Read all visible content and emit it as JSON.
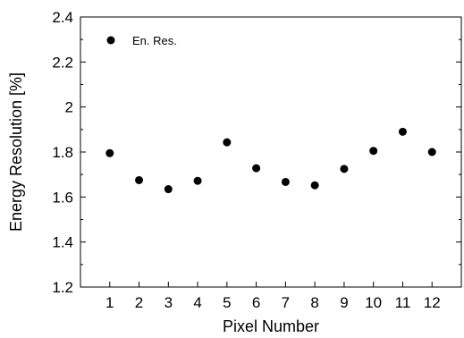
{
  "chart_data": {
    "type": "scatter",
    "x": [
      1,
      2,
      3,
      4,
      5,
      6,
      7,
      8,
      9,
      10,
      11,
      12
    ],
    "series": [
      {
        "name": "En. Res.",
        "values": [
          1.795,
          1.675,
          1.635,
          1.672,
          1.843,
          1.728,
          1.667,
          1.652,
          1.725,
          1.805,
          1.89,
          1.8
        ],
        "color": "#000000"
      }
    ],
    "xlabel": "Pixel Number",
    "ylabel": "Energy Resolution [%]",
    "xlim": [
      0,
      13
    ],
    "ylim": [
      1.2,
      2.4
    ],
    "x_ticks": [
      "1",
      "2",
      "3",
      "4",
      "5",
      "6",
      "7",
      "8",
      "9",
      "10",
      "11",
      "12"
    ],
    "y_ticks": [
      "1.2",
      "1.4",
      "1.6",
      "1.8",
      "2",
      "2.2",
      "2.4"
    ],
    "grid": false,
    "legend_position": "top-left"
  }
}
